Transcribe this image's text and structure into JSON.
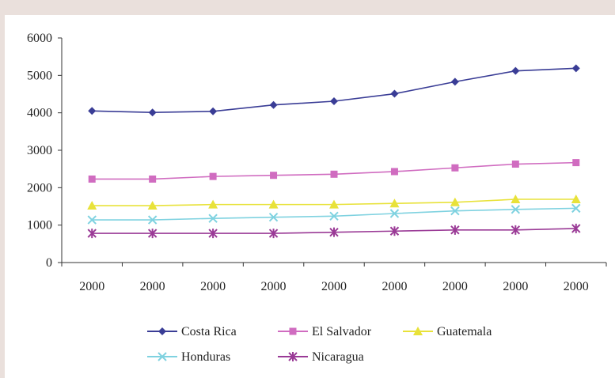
{
  "chart_data": {
    "type": "line",
    "title": "",
    "xlabel": "",
    "ylabel": "",
    "categories": [
      "2000",
      "2000",
      "2000",
      "2000",
      "2000",
      "2000",
      "2000",
      "2000",
      "2000"
    ],
    "ylim": [
      0,
      6000
    ],
    "yticks": [
      0,
      1000,
      2000,
      3000,
      4000,
      5000,
      6000
    ],
    "grid": false,
    "legend_position": "bottom",
    "series": [
      {
        "name": "Costa Rica",
        "color": "#3a3d96",
        "marker": "diamond",
        "values": [
          4050,
          4010,
          4040,
          4210,
          4310,
          4510,
          4830,
          5120,
          5190
        ]
      },
      {
        "name": "El Salvador",
        "color": "#d06cc0",
        "marker": "square",
        "values": [
          2230,
          2230,
          2300,
          2330,
          2360,
          2430,
          2530,
          2630,
          2670
        ]
      },
      {
        "name": "Guatemala",
        "color": "#e8e23a",
        "marker": "triangle",
        "values": [
          1520,
          1520,
          1550,
          1550,
          1550,
          1580,
          1610,
          1690,
          1690
        ]
      },
      {
        "name": "Honduras",
        "color": "#7fd2e0",
        "marker": "x",
        "values": [
          1140,
          1140,
          1180,
          1210,
          1240,
          1310,
          1380,
          1420,
          1450
        ]
      },
      {
        "name": "Nicaragua",
        "color": "#9a3a96",
        "marker": "star",
        "values": [
          780,
          780,
          780,
          780,
          810,
          840,
          870,
          870,
          910
        ]
      }
    ]
  }
}
